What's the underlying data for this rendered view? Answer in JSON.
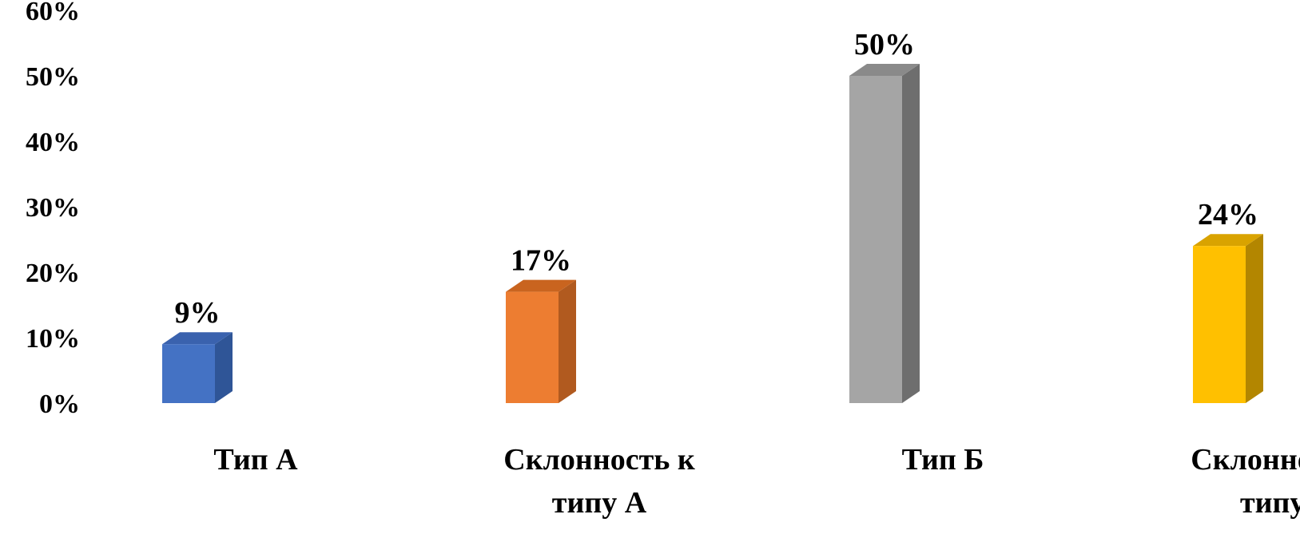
{
  "chart_data": {
    "type": "bar",
    "title": "",
    "xlabel": "",
    "ylabel": "",
    "ylim": [
      0,
      60
    ],
    "y_ticks": [
      "0%",
      "10%",
      "20%",
      "30%",
      "40%",
      "50%",
      "60%"
    ],
    "grid": false,
    "legend": "none",
    "style": "3d-column",
    "categories": [
      [
        "Тип А"
      ],
      [
        "Склонность к",
        "типу А"
      ],
      [
        "Тип Б"
      ],
      [
        "Склонность к",
        "типу Б"
      ]
    ],
    "values": [
      9,
      17,
      50,
      24
    ],
    "data_labels": [
      "9%",
      "17%",
      "50%",
      "24%"
    ],
    "colors": [
      {
        "front": "#4472C4",
        "side": "#2F5597",
        "top": "#3A62AE"
      },
      {
        "front": "#ED7D31",
        "side": "#B15A1F",
        "top": "#C9641F"
      },
      {
        "front": "#A5A5A5",
        "side": "#6E6E6E",
        "top": "#8A8A8A"
      },
      {
        "front": "#FFC000",
        "side": "#B38600",
        "top": "#D9A300"
      }
    ]
  }
}
